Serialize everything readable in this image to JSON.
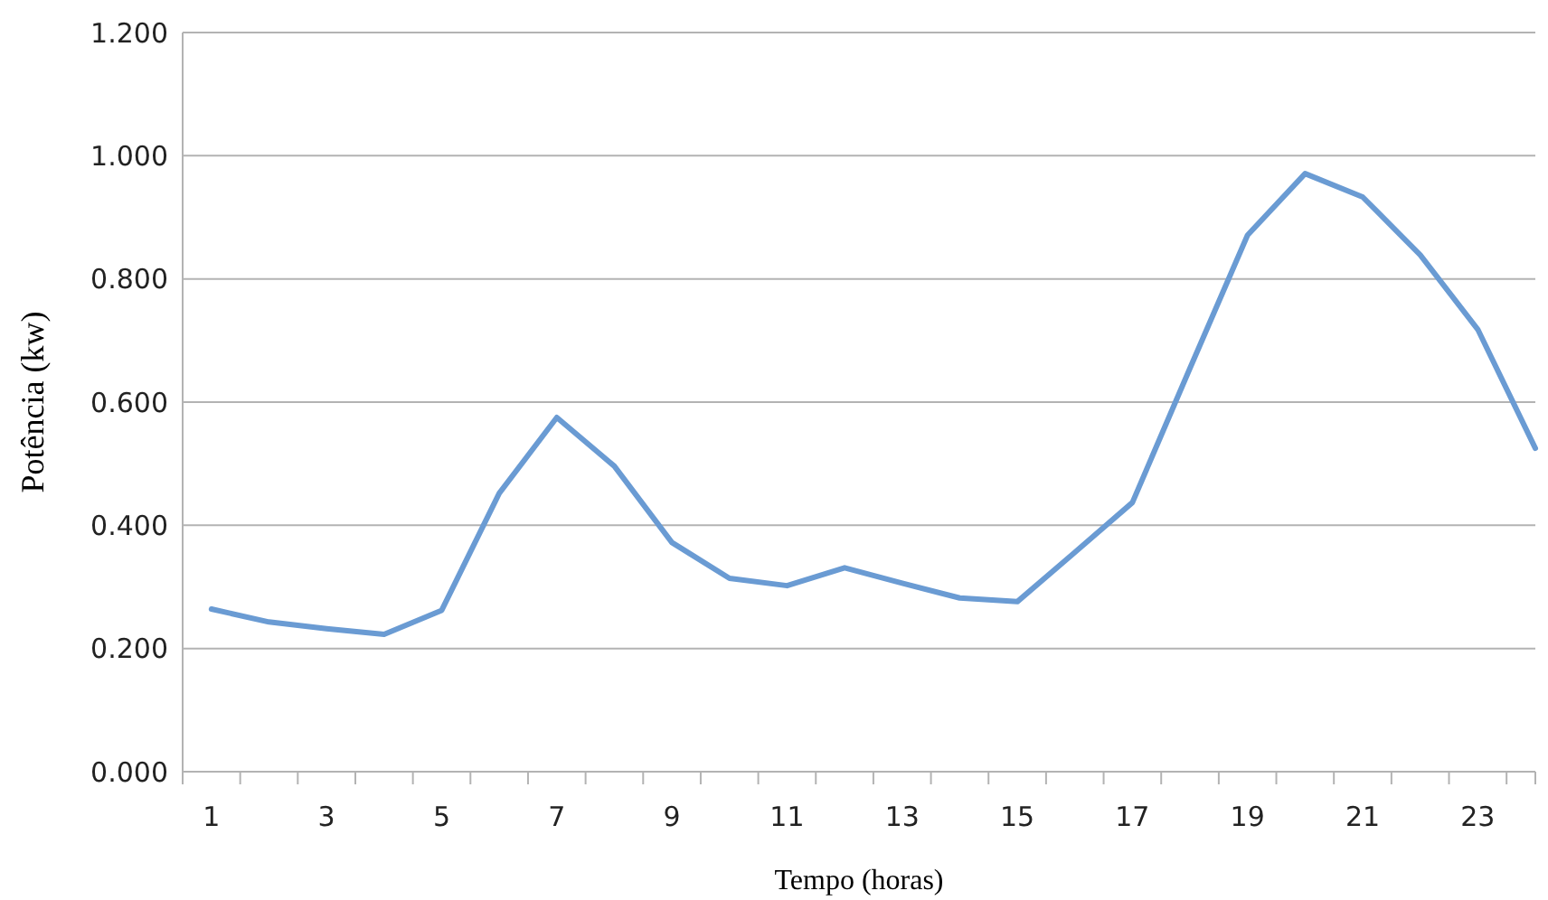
{
  "chart_data": {
    "type": "line",
    "xlabel": "Tempo (horas)",
    "ylabel": "Potência (kw)",
    "x": [
      1,
      2,
      3,
      4,
      5,
      6,
      7,
      8,
      9,
      10,
      11,
      12,
      13,
      14,
      15,
      16,
      17,
      18,
      19,
      20,
      21,
      22,
      23,
      24
    ],
    "series": [
      {
        "color": "#6a9bd3",
        "values": [
          0.264,
          0.243,
          0.232,
          0.223,
          0.262,
          0.452,
          0.575,
          0.496,
          0.372,
          0.314,
          0.302,
          0.331,
          0.306,
          0.282,
          0.276,
          0.356,
          0.437,
          0.655,
          0.871,
          0.971,
          0.933,
          0.839,
          0.718,
          0.525
        ]
      }
    ],
    "xlim": [
      0.5,
      24
    ],
    "xticks": [
      {
        "value": 0.5,
        "label": null
      },
      1,
      {
        "value": 1.5,
        "label": null
      },
      {
        "value": 2.5,
        "label": null
      },
      3,
      {
        "value": 3.5,
        "label": null
      },
      {
        "value": 4.5,
        "label": null
      },
      5,
      {
        "value": 5.5,
        "label": null
      },
      {
        "value": 6.5,
        "label": null
      },
      7,
      {
        "value": 7.5,
        "label": null
      },
      {
        "value": 8.5,
        "label": null
      },
      9,
      {
        "value": 9.5,
        "label": null
      },
      {
        "value": 10.5,
        "label": null
      },
      11,
      {
        "value": 11.5,
        "label": null
      },
      {
        "value": 12.5,
        "label": null
      },
      13,
      {
        "value": 13.5,
        "label": null
      },
      {
        "value": 14.5,
        "label": null
      },
      15,
      {
        "value": 15.5,
        "label": null
      },
      {
        "value": 16.5,
        "label": null
      },
      17,
      {
        "value": 17.5,
        "label": null
      },
      {
        "value": 18.5,
        "label": null
      },
      19,
      {
        "value": 19.5,
        "label": null
      },
      {
        "value": 20.5,
        "label": null
      },
      21,
      {
        "value": 21.5,
        "label": null
      },
      {
        "value": 22.5,
        "label": null
      },
      23,
      {
        "value": 23.5,
        "label": null
      },
      {
        "value": 24,
        "label": null
      }
    ],
    "ylim": [
      0,
      1.2
    ],
    "yticks": [
      {
        "value": 0,
        "label": "0.000"
      },
      {
        "value": 0.2,
        "label": "0.200"
      },
      {
        "value": 0.4,
        "label": "0.400"
      },
      {
        "value": 0.6,
        "label": "0.600"
      },
      {
        "value": 0.8,
        "label": "0.800"
      },
      {
        "value": 1,
        "label": "1.000"
      },
      {
        "value": 1.2,
        "label": "1.200"
      }
    ],
    "grid": "y",
    "marker": "none",
    "line_style": "solid"
  }
}
